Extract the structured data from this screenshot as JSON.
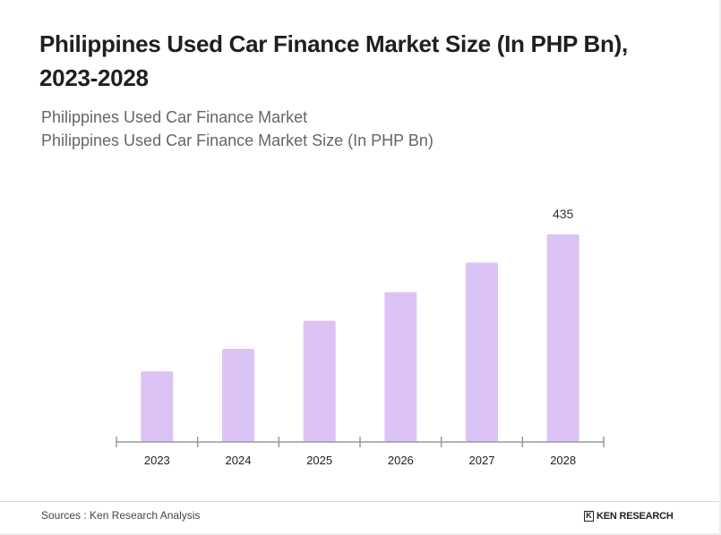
{
  "header": {
    "title": "Philippines Used Car Finance Market Size (In PHP Bn), 2023-2028",
    "subtitle_1": "Philippines Used Car Finance Market",
    "subtitle_2": "Philippines Used Car Finance Market Size (In PHP Bn)"
  },
  "chart_data": {
    "type": "bar",
    "categories": [
      "2023",
      "2024",
      "2025",
      "2026",
      "2027",
      "2028"
    ],
    "values": [
      148,
      195,
      254,
      314,
      376,
      435
    ],
    "data_labels": [
      "",
      "",
      "",
      "",
      "",
      "435"
    ],
    "ylim": [
      0,
      440
    ],
    "grid": false,
    "legend": "none",
    "bar_color": "#dcc3f5",
    "axis_color": "#999999"
  },
  "footer": {
    "source": "Sources : Ken Research Analysis",
    "logo_text": "KEN RESEARCH",
    "logo_icon": "k-logo-icon"
  }
}
